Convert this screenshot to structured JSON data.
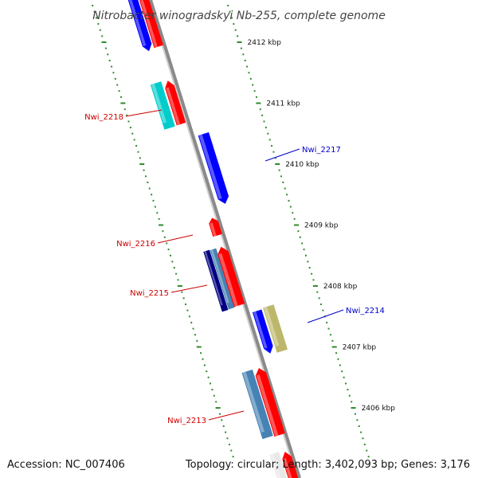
{
  "title": "Nitrobacter winogradskyi Nb-255, complete genome",
  "footer": {
    "accession": "Accession: NC_007406",
    "summary": "Topology: circular; Length: 3,402,093 bp; Genes: 3,176"
  },
  "scale": {
    "unit": "kbp",
    "ticks": [
      {
        "label": "2412 kbp",
        "kbp": 2412
      },
      {
        "label": "2411 kbp",
        "kbp": 2411
      },
      {
        "label": "2410 kbp",
        "kbp": 2410
      },
      {
        "label": "2409 kbp",
        "kbp": 2409
      },
      {
        "label": "2408 kbp",
        "kbp": 2408
      },
      {
        "label": "2407 kbp",
        "kbp": 2407
      },
      {
        "label": "2406 kbp",
        "kbp": 2406
      }
    ]
  },
  "colors": {
    "backbone": "#8a8a8a",
    "tick": "#2e8b2e",
    "label_forward": "#cc0000",
    "label_reverse": "#0000cc",
    "red": "#ff0000",
    "blue": "#0000ff",
    "cyan": "#00cccc",
    "navy": "#000080",
    "steel": "#4682b4",
    "khaki": "#bdb76b",
    "white": "#e8e8e8"
  },
  "labels": [
    {
      "text": "Nwi_2218",
      "color": "#cc0000"
    },
    {
      "text": "Nwi_2217",
      "color": "#0000cc"
    },
    {
      "text": "Nwi_2216",
      "color": "#cc0000"
    },
    {
      "text": "Nwi_2215",
      "color": "#cc0000"
    },
    {
      "text": "Nwi_2214",
      "color": "#0000cc"
    },
    {
      "text": "Nwi_2213",
      "color": "#cc0000"
    }
  ]
}
